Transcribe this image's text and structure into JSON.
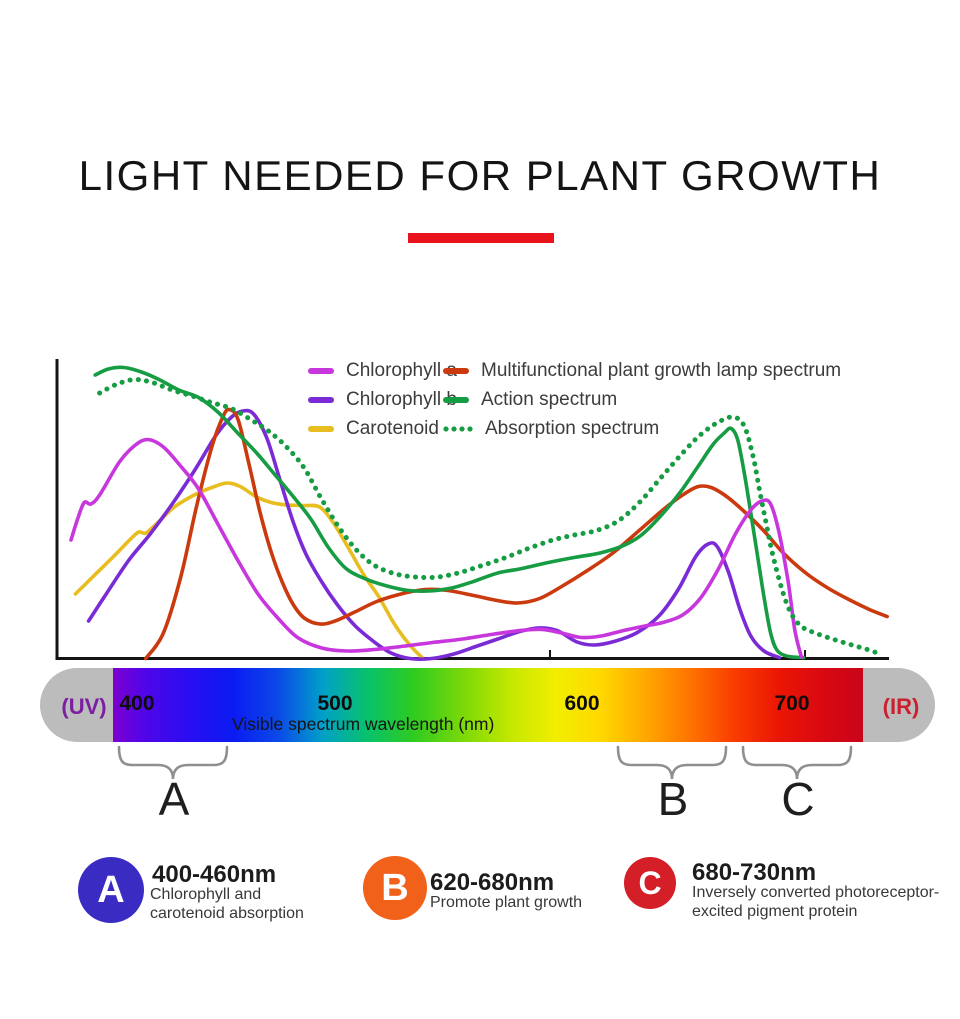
{
  "title": {
    "text": "LIGHT NEEDED FOR PLANT GROWTH",
    "underline_color": "#e8131b"
  },
  "legend": {
    "items": [
      {
        "id": "chlorophyll-a",
        "label": "Chlorophyll a",
        "color": "#c837dd",
        "style": "solid"
      },
      {
        "id": "chlorophyll-b",
        "label": "Chlorophyll b",
        "color": "#7a2bd6",
        "style": "solid"
      },
      {
        "id": "carotenoid",
        "label": "Carotenoid",
        "color": "#e7bd1f",
        "style": "solid"
      },
      {
        "id": "lamp-spectrum",
        "label": "Multifunctional plant growth lamp spectrum",
        "color": "#cb3a0e",
        "style": "solid"
      },
      {
        "id": "action-spectrum",
        "label": "Action spectrum",
        "color": "#169c42",
        "style": "solid"
      },
      {
        "id": "absorption-spectrum",
        "label": "Absorption spectrum",
        "color": "#169c42",
        "style": "dotted"
      }
    ]
  },
  "chart_data": {
    "type": "line",
    "title": "",
    "xlabel": "Visible spectrum wavelength (nm)",
    "ylabel": "",
    "x_range": [
      374,
      760
    ],
    "y_range": [
      0,
      1
    ],
    "grid": false,
    "legend_position": "top-center-inside",
    "series": [
      {
        "id": "carotenoid",
        "name": "Carotenoid",
        "color": "#e7bd1f",
        "style": "solid",
        "points": [
          [
            376,
            0.22
          ],
          [
            385,
            0.285
          ],
          [
            394,
            0.35
          ],
          [
            402,
            0.41
          ],
          [
            405,
            0.427
          ],
          [
            408,
            0.423
          ],
          [
            413,
            0.455
          ],
          [
            421,
            0.51
          ],
          [
            430,
            0.55
          ],
          [
            438,
            0.575
          ],
          [
            445,
            0.59
          ],
          [
            451,
            0.578
          ],
          [
            458,
            0.545
          ],
          [
            465,
            0.525
          ],
          [
            472,
            0.517
          ],
          [
            480,
            0.515
          ],
          [
            487,
            0.51
          ],
          [
            493,
            0.46
          ],
          [
            500,
            0.375
          ],
          [
            507,
            0.285
          ],
          [
            514,
            0.21
          ],
          [
            521,
            0.12
          ],
          [
            528,
            0.05
          ],
          [
            534,
            0.005
          ]
        ]
      },
      {
        "id": "chlorophyll-b",
        "name": "Chlorophyll b",
        "color": "#7a2bd6",
        "style": "solid",
        "points": [
          [
            382,
            0.13
          ],
          [
            390,
            0.22
          ],
          [
            400,
            0.33
          ],
          [
            410,
            0.42
          ],
          [
            420,
            0.52
          ],
          [
            430,
            0.63
          ],
          [
            440,
            0.75
          ],
          [
            447,
            0.81
          ],
          [
            452,
            0.83
          ],
          [
            457,
            0.82
          ],
          [
            463,
            0.74
          ],
          [
            469,
            0.6
          ],
          [
            475,
            0.46
          ],
          [
            481,
            0.35
          ],
          [
            488,
            0.26
          ],
          [
            495,
            0.185
          ],
          [
            503,
            0.115
          ],
          [
            511,
            0.065
          ],
          [
            519,
            0.025
          ],
          [
            528,
            0.005
          ],
          [
            538,
            0.005
          ],
          [
            548,
            0.02
          ],
          [
            558,
            0.045
          ],
          [
            568,
            0.07
          ],
          [
            578,
            0.095
          ],
          [
            587,
            0.107
          ],
          [
            595,
            0.098
          ],
          [
            604,
            0.06
          ],
          [
            612,
            0.05
          ],
          [
            621,
            0.062
          ],
          [
            631,
            0.09
          ],
          [
            641,
            0.145
          ],
          [
            650,
            0.235
          ],
          [
            658,
            0.345
          ],
          [
            664,
            0.388
          ],
          [
            668,
            0.375
          ],
          [
            673,
            0.29
          ],
          [
            678,
            0.17
          ],
          [
            683,
            0.08
          ],
          [
            689,
            0.03
          ],
          [
            696,
            0.008
          ]
        ]
      },
      {
        "id": "lamp-spectrum",
        "name": "Multifunctional plant growth lamp spectrum",
        "color": "#cb3a0e",
        "style": "solid",
        "points": [
          [
            408,
            0.005
          ],
          [
            416,
            0.09
          ],
          [
            424,
            0.28
          ],
          [
            431,
            0.51
          ],
          [
            438,
            0.71
          ],
          [
            443,
            0.81
          ],
          [
            446,
            0.835
          ],
          [
            450,
            0.8
          ],
          [
            455,
            0.65
          ],
          [
            460,
            0.49
          ],
          [
            465,
            0.36
          ],
          [
            470,
            0.26
          ],
          [
            475,
            0.185
          ],
          [
            480,
            0.14
          ],
          [
            487,
            0.12
          ],
          [
            494,
            0.13
          ],
          [
            503,
            0.16
          ],
          [
            513,
            0.195
          ],
          [
            524,
            0.22
          ],
          [
            535,
            0.235
          ],
          [
            545,
            0.232
          ],
          [
            557,
            0.215
          ],
          [
            568,
            0.198
          ],
          [
            577,
            0.19
          ],
          [
            587,
            0.205
          ],
          [
            597,
            0.245
          ],
          [
            608,
            0.295
          ],
          [
            620,
            0.355
          ],
          [
            632,
            0.43
          ],
          [
            643,
            0.5
          ],
          [
            652,
            0.55
          ],
          [
            659,
            0.578
          ],
          [
            665,
            0.575
          ],
          [
            672,
            0.545
          ],
          [
            680,
            0.495
          ],
          [
            689,
            0.43
          ],
          [
            698,
            0.355
          ],
          [
            708,
            0.29
          ],
          [
            718,
            0.24
          ],
          [
            728,
            0.2
          ],
          [
            737,
            0.168
          ],
          [
            745,
            0.145
          ]
        ]
      },
      {
        "id": "action-spectrum",
        "name": "Action spectrum",
        "color": "#169c42",
        "style": "solid",
        "points": [
          [
            385,
            0.95
          ],
          [
            391,
            0.97
          ],
          [
            398,
            0.975
          ],
          [
            406,
            0.96
          ],
          [
            414,
            0.935
          ],
          [
            423,
            0.9
          ],
          [
            432,
            0.875
          ],
          [
            441,
            0.825
          ],
          [
            450,
            0.755
          ],
          [
            459,
            0.685
          ],
          [
            467,
            0.615
          ],
          [
            475,
            0.545
          ],
          [
            483,
            0.47
          ],
          [
            491,
            0.375
          ],
          [
            499,
            0.305
          ],
          [
            508,
            0.27
          ],
          [
            517,
            0.248
          ],
          [
            527,
            0.232
          ],
          [
            537,
            0.23
          ],
          [
            547,
            0.24
          ],
          [
            557,
            0.262
          ],
          [
            568,
            0.29
          ],
          [
            579,
            0.305
          ],
          [
            591,
            0.325
          ],
          [
            603,
            0.342
          ],
          [
            614,
            0.356
          ],
          [
            624,
            0.378
          ],
          [
            633,
            0.415
          ],
          [
            642,
            0.48
          ],
          [
            651,
            0.56
          ],
          [
            659,
            0.645
          ],
          [
            666,
            0.72
          ],
          [
            671,
            0.757
          ],
          [
            674,
            0.772
          ],
          [
            677,
            0.735
          ],
          [
            680,
            0.625
          ],
          [
            683,
            0.49
          ],
          [
            686,
            0.35
          ],
          [
            689,
            0.21
          ],
          [
            692,
            0.09
          ],
          [
            695,
            0.032
          ],
          [
            700,
            0.012
          ],
          [
            707,
            0.008
          ]
        ]
      },
      {
        "id": "chlorophyll-a",
        "name": "Chlorophyll a",
        "color": "#c837dd",
        "style": "solid",
        "points": [
          [
            374,
            0.4
          ],
          [
            377,
            0.47
          ],
          [
            380,
            0.525
          ],
          [
            383,
            0.52
          ],
          [
            387,
            0.55
          ],
          [
            396,
            0.66
          ],
          [
            403,
            0.715
          ],
          [
            409,
            0.735
          ],
          [
            416,
            0.71
          ],
          [
            424,
            0.645
          ],
          [
            432,
            0.57
          ],
          [
            441,
            0.45
          ],
          [
            450,
            0.33
          ],
          [
            459,
            0.22
          ],
          [
            468,
            0.14
          ],
          [
            477,
            0.075
          ],
          [
            488,
            0.04
          ],
          [
            500,
            0.03
          ],
          [
            512,
            0.035
          ],
          [
            524,
            0.045
          ],
          [
            538,
            0.058
          ],
          [
            552,
            0.07
          ],
          [
            565,
            0.085
          ],
          [
            578,
            0.098
          ],
          [
            588,
            0.102
          ],
          [
            597,
            0.09
          ],
          [
            606,
            0.075
          ],
          [
            615,
            0.08
          ],
          [
            625,
            0.098
          ],
          [
            634,
            0.112
          ],
          [
            643,
            0.125
          ],
          [
            652,
            0.15
          ],
          [
            660,
            0.205
          ],
          [
            668,
            0.3
          ],
          [
            676,
            0.42
          ],
          [
            683,
            0.5
          ],
          [
            688,
            0.53
          ],
          [
            692,
            0.52
          ],
          [
            696,
            0.42
          ],
          [
            700,
            0.26
          ],
          [
            703,
            0.1
          ],
          [
            706,
            0.01
          ]
        ]
      },
      {
        "id": "absorption-spectrum",
        "name": "Absorption spectrum",
        "color": "#169c42",
        "style": "dotted",
        "points": [
          [
            387,
            0.89
          ],
          [
            395,
            0.92
          ],
          [
            403,
            0.935
          ],
          [
            411,
            0.925
          ],
          [
            420,
            0.9
          ],
          [
            429,
            0.88
          ],
          [
            438,
            0.858
          ],
          [
            447,
            0.838
          ],
          [
            456,
            0.8
          ],
          [
            464,
            0.762
          ],
          [
            472,
            0.71
          ],
          [
            480,
            0.64
          ],
          [
            488,
            0.535
          ],
          [
            496,
            0.44
          ],
          [
            504,
            0.365
          ],
          [
            512,
            0.315
          ],
          [
            521,
            0.288
          ],
          [
            530,
            0.277
          ],
          [
            540,
            0.276
          ],
          [
            550,
            0.29
          ],
          [
            560,
            0.313
          ],
          [
            571,
            0.34
          ],
          [
            582,
            0.372
          ],
          [
            593,
            0.4
          ],
          [
            603,
            0.417
          ],
          [
            613,
            0.432
          ],
          [
            623,
            0.465
          ],
          [
            633,
            0.53
          ],
          [
            643,
            0.615
          ],
          [
            652,
            0.69
          ],
          [
            660,
            0.75
          ],
          [
            668,
            0.792
          ],
          [
            675,
            0.81
          ],
          [
            680,
            0.78
          ],
          [
            684,
            0.68
          ],
          [
            687,
            0.565
          ],
          [
            690,
            0.455
          ],
          [
            693,
            0.35
          ],
          [
            697,
            0.24
          ],
          [
            701,
            0.16
          ],
          [
            706,
            0.112
          ],
          [
            713,
            0.088
          ],
          [
            721,
            0.068
          ],
          [
            729,
            0.05
          ],
          [
            736,
            0.035
          ],
          [
            741,
            0.022
          ]
        ]
      }
    ]
  },
  "spectrum_bar": {
    "uv_label": "(UV)",
    "ir_label": "(IR)",
    "ticks": [
      "400",
      "500",
      "600",
      "700"
    ],
    "axis_label": "Visible spectrum wavelength (nm)",
    "uv_color": "#7b1fa2",
    "ir_color": "#cb2030"
  },
  "brackets": [
    {
      "label": "A"
    },
    {
      "label": "B"
    },
    {
      "label": "C"
    }
  ],
  "badges": [
    {
      "letter": "A",
      "color": "#3a2cc3",
      "range": "400-460nm",
      "description_lines": [
        "Chlorophyll and",
        "carotenoid absorption"
      ]
    },
    {
      "letter": "B",
      "color": "#f1611a",
      "range": "620-680nm",
      "description_lines": [
        "Promote plant growth"
      ]
    },
    {
      "letter": "C",
      "color": "#d41e28",
      "range": "680-730nm",
      "description_lines": [
        "Inversely converted photoreceptor-",
        "excited pigment protein"
      ]
    }
  ]
}
